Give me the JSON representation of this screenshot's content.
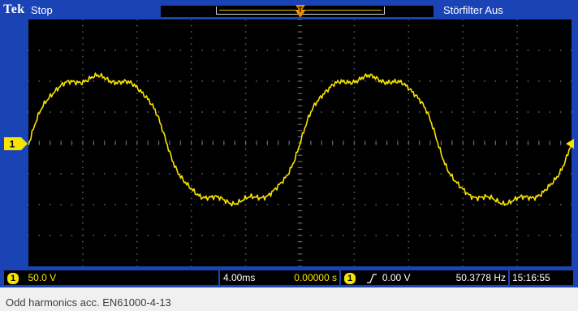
{
  "header": {
    "brand": "Tek",
    "run_state": "Stop",
    "noise_filter": "Störfilter Aus"
  },
  "markers": {
    "channel": "1",
    "trigger_position": "T"
  },
  "status_bar": {
    "channel_badge": "1",
    "vertical_scale": "50.0 V",
    "time_per_div": "4.00ms",
    "horizontal_delay": "0.00000 s",
    "trigger_channel_badge": "1",
    "trigger_level": "0.00 V",
    "frequency": "50.3778 Hz",
    "time": "15:16:55"
  },
  "caption": "Odd harmonics acc. EN61000-4-13",
  "colors": {
    "frame": "#1a44b6",
    "trace": "#f7e400",
    "screen": "#000000"
  }
}
